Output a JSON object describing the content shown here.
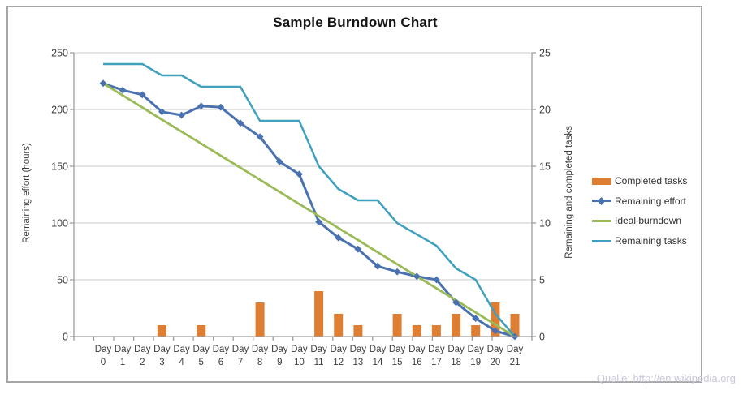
{
  "chart_data": {
    "type": "combo-bar-line",
    "title": "Sample Burndown Chart",
    "categories": [
      "Day 0",
      "Day 1",
      "Day 2",
      "Day 3",
      "Day 4",
      "Day 5",
      "Day 6",
      "Day 7",
      "Day 8",
      "Day 9",
      "Day 10",
      "Day 11",
      "Day 12",
      "Day 13",
      "Day 14",
      "Day 15",
      "Day 16",
      "Day 17",
      "Day 18",
      "Day 19",
      "Day 20",
      "Day 21"
    ],
    "left_axis": {
      "title": "Remaining effort (hours)",
      "min": 0,
      "max": 250,
      "step": 50,
      "ticks": [
        "0",
        "50",
        "100",
        "150",
        "200",
        "250"
      ]
    },
    "right_axis": {
      "title": "Remaining and  completed tasks",
      "min": 0,
      "max": 25,
      "step": 5,
      "ticks": [
        "0",
        "5",
        "10",
        "15",
        "20",
        "25"
      ]
    },
    "grid": true,
    "legend_position": "right",
    "series": [
      {
        "name": "Completed tasks",
        "type": "bar",
        "axis": "right",
        "color": "#dd7e32",
        "values": [
          0,
          0,
          0,
          1,
          0,
          1,
          0,
          0,
          3,
          0,
          0,
          4,
          2,
          1,
          0,
          2,
          1,
          1,
          2,
          1,
          3,
          2
        ]
      },
      {
        "name": "Remaining effort",
        "type": "line",
        "axis": "left",
        "color": "#4a72b0",
        "marker": "diamond",
        "values": [
          223,
          217,
          213,
          198,
          195,
          203,
          202,
          188,
          176,
          154,
          143,
          101,
          87,
          77,
          62,
          57,
          53,
          50,
          30,
          16,
          5,
          0
        ]
      },
      {
        "name": "Ideal burndown",
        "type": "line",
        "axis": "left",
        "color": "#9bbb59",
        "values": [
          223,
          212.4,
          201.8,
          191.1,
          180.5,
          169.9,
          159.3,
          148.7,
          138.1,
          127.4,
          116.8,
          106.2,
          95.6,
          85.0,
          74.3,
          63.7,
          53.1,
          42.5,
          31.9,
          21.2,
          10.6,
          0
        ]
      },
      {
        "name": "Remaining tasks",
        "type": "line",
        "axis": "right",
        "color": "#40a1be",
        "values": [
          24,
          24,
          24,
          23,
          23,
          22,
          22,
          22,
          19,
          19,
          19,
          15,
          13,
          12,
          12,
          10,
          9,
          8,
          6,
          5,
          2,
          0
        ]
      }
    ],
    "style": {
      "gridline": "#c9c9c9",
      "axis": "#9e9e9e",
      "frame_border": "#a6a6a6",
      "tick_text": "#3d3d3d"
    }
  },
  "source_note": "Quelle: http://en.wikipedia.org"
}
